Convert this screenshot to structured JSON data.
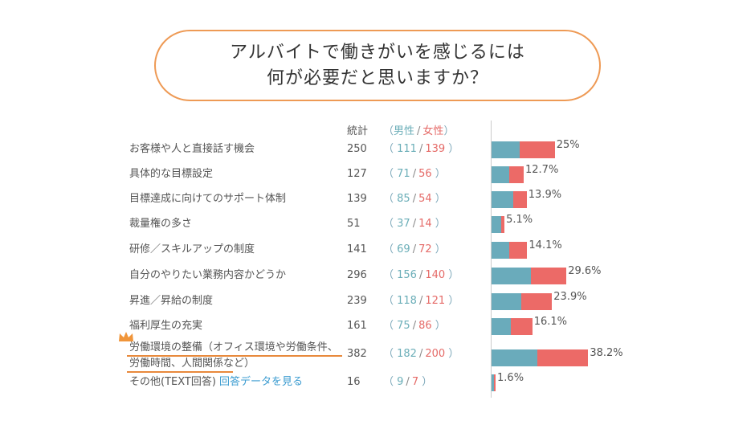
{
  "title": {
    "line1": "アルバイトで働きがいを感じるには",
    "line2": "何が必要だと思いますか？"
  },
  "headers": {
    "total": "統計",
    "open": "（",
    "male": "男性",
    "slash": "/",
    "female": "女性",
    "close": "）"
  },
  "rows": [
    {
      "label": "お客様や人と直接話す機会",
      "total": "250",
      "male": "111",
      "female": "139",
      "pct": "25%"
    },
    {
      "label": "具体的な目標設定",
      "total": "127",
      "male": "71",
      "female": "56",
      "pct": "12.7%"
    },
    {
      "label": "目標達成に向けてのサポート体制",
      "total": "139",
      "male": "85",
      "female": "54",
      "pct": "13.9%"
    },
    {
      "label": "裁量権の多さ",
      "total": "51",
      "male": "37",
      "female": "14",
      "pct": "5.1%"
    },
    {
      "label": "研修／スキルアップの制度",
      "total": "141",
      "male": "69",
      "female": "72",
      "pct": "14.1%"
    },
    {
      "label": "自分のやりたい業務内容かどうか",
      "total": "296",
      "male": "156",
      "female": "140",
      "pct": "29.6%"
    },
    {
      "label": "昇進／昇給の制度",
      "total": "239",
      "male": "118",
      "female": "121",
      "pct": "23.9%"
    },
    {
      "label": "福利厚生の充実",
      "total": "161",
      "male": "75",
      "female": "86",
      "pct": "16.1%"
    },
    {
      "label": "労働環境の整備（オフィス環境や労働条件、労働時間、人間関係など）",
      "total": "382",
      "male": "182",
      "female": "200",
      "pct": "38.2%"
    },
    {
      "label": "その他(TEXT回答)",
      "link": "回答データを見る",
      "total": "16",
      "male": "9",
      "female": "7",
      "pct": "1.6%"
    }
  ],
  "chart_data": {
    "type": "bar",
    "orientation": "horizontal",
    "stacked": true,
    "title": "アルバイトで働きがいを感じるには何が必要だと思いますか？",
    "categories": [
      "お客様や人と直接話す機会",
      "具体的な目標設定",
      "目標達成に向けてのサポート体制",
      "裁量権の多さ",
      "研修／スキルアップの制度",
      "自分のやりたい業務内容かどうか",
      "昇進／昇給の制度",
      "福利厚生の充実",
      "労働環境の整備（オフィス環境や労働条件、労働時間、人間関係など）",
      "その他(TEXT回答)"
    ],
    "series": [
      {
        "name": "男性",
        "color": "#6aabbb",
        "values": [
          111,
          71,
          85,
          37,
          69,
          156,
          118,
          75,
          182,
          9
        ]
      },
      {
        "name": "女性",
        "color": "#ec6a67",
        "values": [
          139,
          56,
          54,
          14,
          72,
          140,
          121,
          86,
          200,
          7
        ]
      }
    ],
    "totals": [
      250,
      127,
      139,
      51,
      141,
      296,
      239,
      161,
      382,
      16
    ],
    "percent_labels": [
      "25%",
      "12.7%",
      "13.9%",
      "5.1%",
      "14.1%",
      "29.6%",
      "23.9%",
      "16.1%",
      "38.2%",
      "1.6%"
    ],
    "highlight_category": "労働環境の整備（オフィス環境や労働条件、労働時間、人間関係など）",
    "accent_color": "#e8893c"
  }
}
